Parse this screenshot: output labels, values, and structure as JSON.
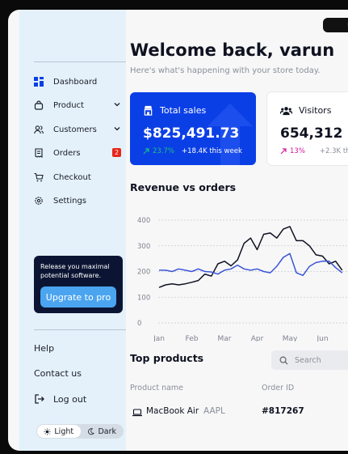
{
  "sidebar": {
    "nav": [
      {
        "label": "Dashboard",
        "icon": "grid-icon"
      },
      {
        "label": "Product",
        "icon": "bag-icon",
        "expandable": true
      },
      {
        "label": "Customers",
        "icon": "users-icon",
        "expandable": true
      },
      {
        "label": "Orders",
        "icon": "receipt-icon",
        "badge": "2"
      },
      {
        "label": "Checkout",
        "icon": "cart-icon"
      },
      {
        "label": "Settings",
        "icon": "gear-icon"
      }
    ],
    "promo": {
      "text": "Release you maximal potential software.",
      "button": "Upgrate to pro"
    },
    "footer": {
      "help": "Help",
      "contact": "Contact us",
      "logout": "Log out"
    },
    "theme": {
      "light": "Light",
      "dark": "Dark",
      "active": "light"
    }
  },
  "header": {
    "welcome": "Welcome back, varun",
    "subtitle": "Here's what's happening with your store today."
  },
  "cards": {
    "sales": {
      "title": "Total sales",
      "value": "$825,491.73",
      "change": "23.7%",
      "delta": "+18.4K this week"
    },
    "visitors": {
      "title": "Visitors",
      "value": "654,312",
      "change": "13%",
      "delta": "+2.3K th"
    }
  },
  "chart_title": "Revenue vs orders",
  "chart_data": {
    "type": "line",
    "categories": [
      "Jan",
      "Feb",
      "Mar",
      "Apr",
      "May",
      "Jun"
    ],
    "y_ticks": [
      0,
      100,
      200,
      300,
      400
    ],
    "ylim": [
      0,
      400
    ],
    "x": [
      0,
      0.2,
      0.4,
      0.6,
      0.8,
      1.0,
      1.2,
      1.4,
      1.6,
      1.8,
      2.0,
      2.2,
      2.4,
      2.6,
      2.8,
      3.0,
      3.2,
      3.4,
      3.6,
      3.8,
      4.0,
      4.2,
      4.4,
      4.6,
      4.8,
      5.0,
      5.2,
      5.4,
      5.6
    ],
    "series": [
      {
        "color": "#0f1220",
        "values": [
          138,
          148,
          152,
          148,
          152,
          158,
          165,
          190,
          182,
          230,
          240,
          222,
          245,
          310,
          330,
          285,
          345,
          350,
          330,
          365,
          375,
          320,
          320,
          300,
          265,
          260,
          230,
          240,
          205
        ]
      },
      {
        "color": "#3a55d6",
        "values": [
          205,
          205,
          200,
          210,
          205,
          200,
          210,
          200,
          198,
          190,
          205,
          210,
          225,
          210,
          205,
          210,
          200,
          195,
          220,
          255,
          270,
          195,
          185,
          220,
          235,
          240,
          240,
          215,
          195
        ]
      }
    ]
  },
  "products": {
    "title": "Top products",
    "search_placeholder": "Search",
    "columns": [
      "Product name",
      "Order ID"
    ],
    "rows": [
      {
        "name": "MacBook Air",
        "ticker": "AAPL",
        "order_id": "#817267"
      }
    ]
  },
  "colors": {
    "accent": "#0b3fe6",
    "sidebar_bg": "#e4f1fb",
    "promo_bg": "#0b1533",
    "positive": "#19c37d",
    "pink": "#d2179a",
    "badge": "#e8251b"
  }
}
